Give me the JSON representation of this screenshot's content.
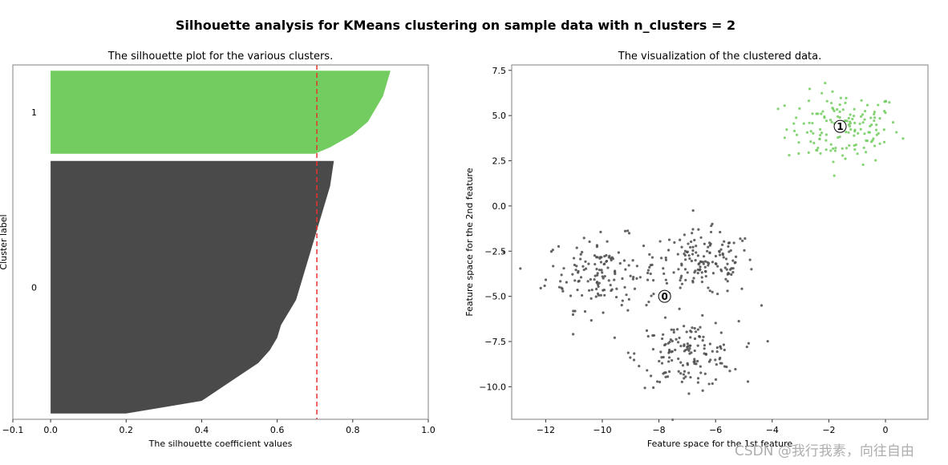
{
  "suptitle": "Silhouette analysis for KMeans clustering on sample data with n_clusters = 2",
  "watermark": "CSDN @我行我素，向往自由",
  "colors": {
    "cluster_0": "#4a4a4a",
    "cluster_1": "#72cc5f",
    "avg_line": "#e8332e",
    "axis": "#808080"
  },
  "chart_data": [
    {
      "type": "area",
      "title": "The silhouette plot for the various clusters.",
      "xlabel": "The silhouette coefficient values",
      "ylabel": "Cluster label",
      "xlim": [
        -0.1,
        1.0
      ],
      "xticks": [
        "−0.1",
        "0.0",
        "0.2",
        "0.4",
        "0.6",
        "0.8",
        "1.0"
      ],
      "xtick_values": [
        -0.1,
        0.0,
        0.2,
        0.4,
        0.6,
        0.8,
        1.0
      ],
      "ylim": [
        -8,
        483
      ],
      "silhouette_avg": 0.705,
      "clusters": [
        {
          "label": "0",
          "y_range": [
            0,
            350
          ],
          "values_sorted": [
            0.2,
            0.4,
            0.45,
            0.5,
            0.55,
            0.58,
            0.6,
            0.61,
            0.63,
            0.65,
            0.66,
            0.67,
            0.68,
            0.69,
            0.7,
            0.71,
            0.72,
            0.73,
            0.74,
            0.745,
            0.75
          ]
        },
        {
          "label": "1",
          "y_range": [
            360,
            475
          ],
          "values_sorted": [
            0.7,
            0.74,
            0.77,
            0.8,
            0.82,
            0.84,
            0.85,
            0.86,
            0.87,
            0.88,
            0.885,
            0.89,
            0.895,
            0.9
          ]
        }
      ]
    },
    {
      "type": "scatter",
      "title": "The visualization of the clustered data.",
      "xlabel": "Feature space for the 1st feature",
      "ylabel": "Feature space for the 2nd feature",
      "xlim": [
        -13.2,
        1.5
      ],
      "ylim": [
        -11.8,
        7.8
      ],
      "xticks": [
        "−12",
        "−10",
        "−8",
        "−6",
        "−4",
        "−2",
        "0"
      ],
      "xtick_values": [
        -12,
        -10,
        -8,
        -6,
        -4,
        -2,
        0
      ],
      "yticks": [
        "7.5",
        "5.0",
        "2.5",
        "0.0",
        "−2.5",
        "−5.0",
        "−7.5",
        "−10.0"
      ],
      "ytick_values": [
        7.5,
        5.0,
        2.5,
        0.0,
        -2.5,
        -5.0,
        -7.5,
        -10.0
      ],
      "centers": [
        {
          "label": "0",
          "x": -7.8,
          "y": -5.0
        },
        {
          "label": "1",
          "x": -1.6,
          "y": 4.4
        }
      ],
      "blobs": [
        {
          "cluster": 1,
          "x": -1.5,
          "y": 4.3,
          "spread": 1.0,
          "count": 150
        },
        {
          "cluster": 0,
          "x": -10.0,
          "y": -3.7,
          "spread": 1.0,
          "count": 150
        },
        {
          "cluster": 0,
          "x": -6.4,
          "y": -3.2,
          "spread": 0.9,
          "count": 150
        },
        {
          "cluster": 0,
          "x": -7.0,
          "y": -8.2,
          "spread": 0.9,
          "count": 150
        }
      ]
    }
  ]
}
